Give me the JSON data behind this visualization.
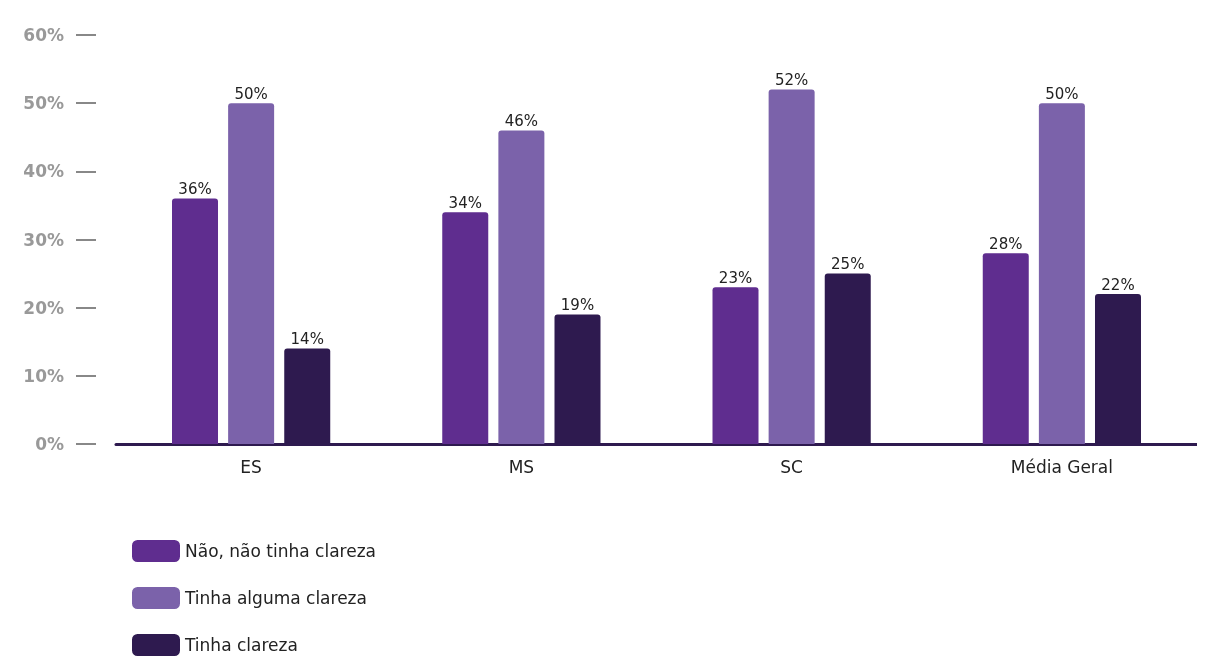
{
  "chart_data": {
    "type": "bar",
    "categories": [
      "ES",
      "MS",
      "SC",
      "Média Geral"
    ],
    "series": [
      {
        "name": "Não, não tinha clareza",
        "color": "#5f2d8f",
        "values": [
          36,
          34,
          23,
          28
        ],
        "value_labels": [
          "36%",
          "34%",
          "23%",
          "28%"
        ]
      },
      {
        "name": "Tinha alguma clareza",
        "color": "#7b62aa",
        "values": [
          50,
          46,
          52,
          50
        ],
        "value_labels": [
          "50%",
          "46%",
          "52%",
          "50%"
        ]
      },
      {
        "name": "Tinha clareza",
        "color": "#2e1a4f",
        "values": [
          14,
          19,
          25,
          22
        ],
        "value_labels": [
          "14%",
          "19%",
          "25%",
          "22%"
        ]
      }
    ],
    "ylim": [
      0,
      60
    ],
    "yticks": [
      {
        "value": 0,
        "label": "0%"
      },
      {
        "value": 10,
        "label": "10%"
      },
      {
        "value": 20,
        "label": "20%"
      },
      {
        "value": 30,
        "label": "30%"
      },
      {
        "value": 40,
        "label": "40%"
      },
      {
        "value": 50,
        "label": "50%"
      },
      {
        "value": 60,
        "label": "60%"
      }
    ],
    "grid": false,
    "legend": "bottom left"
  }
}
